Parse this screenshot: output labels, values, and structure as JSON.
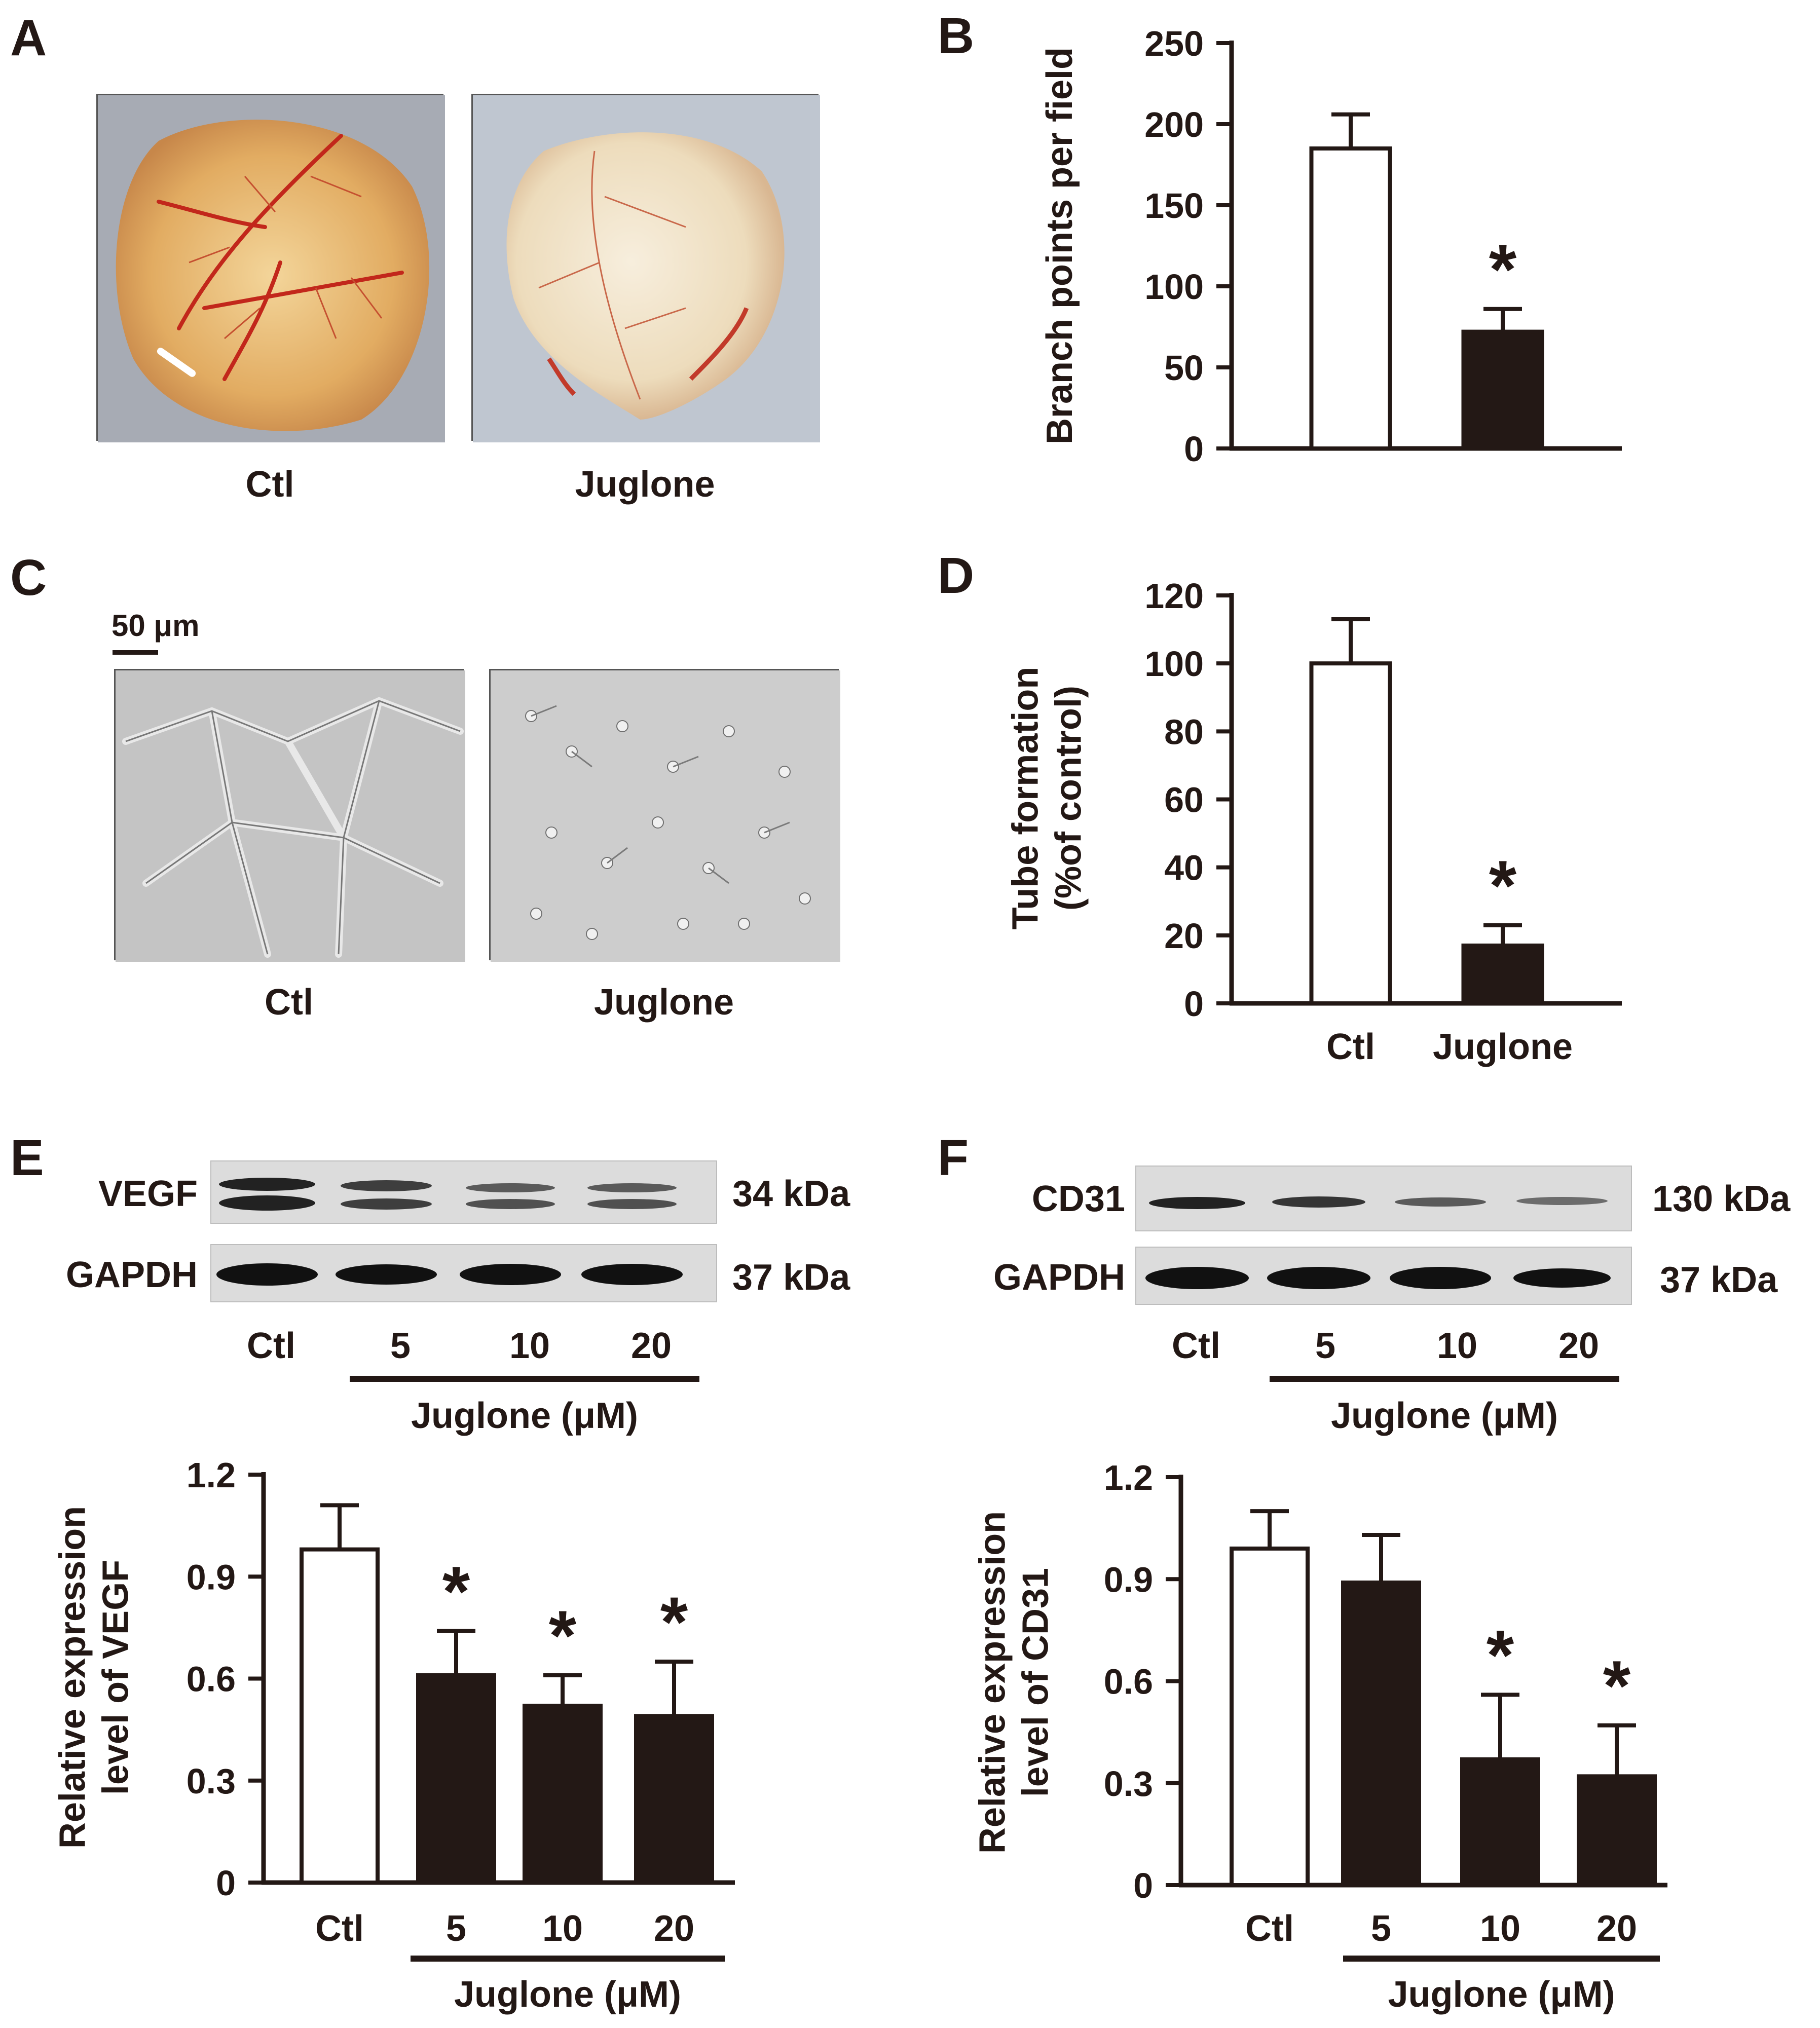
{
  "colors": {
    "ink": "#231815",
    "bar_open": "#ffffff",
    "bar_filled": "#231815"
  },
  "panel_a": {
    "letter": "A",
    "images": [
      {
        "caption": "Ctl",
        "desc_icon": "cam-photo"
      },
      {
        "caption": "Juglone",
        "desc_icon": "cam-photo"
      }
    ]
  },
  "panel_c": {
    "letter": "C",
    "scale_bar": "50 μm",
    "images": [
      {
        "caption": "Ctl",
        "desc_icon": "tube-micrograph"
      },
      {
        "caption": "Juglone",
        "desc_icon": "tube-micrograph"
      }
    ]
  },
  "panel_e": {
    "letter": "E",
    "blots": [
      {
        "protein": "VEGF",
        "size": "34 kDa"
      },
      {
        "protein": "GAPDH",
        "size": "37 kDa"
      }
    ],
    "lanes": [
      "Ctl",
      "5",
      "10",
      "20"
    ],
    "treatment_label": "Juglone (μM)"
  },
  "panel_f": {
    "letter": "F",
    "blots": [
      {
        "protein": "CD31",
        "size": "130 kDa"
      },
      {
        "protein": "GAPDH",
        "size": "37 kDa"
      }
    ],
    "lanes": [
      "Ctl",
      "5",
      "10",
      "20"
    ],
    "treatment_label": "Juglone (μM)"
  },
  "chart_data": [
    {
      "id": "B",
      "letter": "B",
      "type": "bar",
      "categories": [
        "Ctl",
        "Juglone"
      ],
      "show_category_labels": false,
      "values": [
        185,
        72
      ],
      "errors": [
        21,
        14
      ],
      "significant": [
        false,
        true
      ],
      "fill": [
        "open",
        "filled"
      ],
      "ylabel": "Branch points per field",
      "ylabel_lines": [
        "Branch points per field"
      ],
      "ylim": [
        0,
        250
      ],
      "yticks": [
        "0",
        "50",
        "100",
        "150",
        "200",
        "250"
      ],
      "ytick_values": [
        0,
        50,
        100,
        150,
        200,
        250
      ],
      "grid": false
    },
    {
      "id": "D",
      "letter": "D",
      "type": "bar",
      "categories": [
        "Ctl",
        "Juglone"
      ],
      "show_category_labels": true,
      "values": [
        100,
        17
      ],
      "errors": [
        13,
        6
      ],
      "significant": [
        false,
        true
      ],
      "fill": [
        "open",
        "filled"
      ],
      "ylabel": "Tube formation (%of control)",
      "ylabel_lines": [
        "Tube formation",
        "(%of control)"
      ],
      "ylim": [
        0,
        120
      ],
      "yticks": [
        "0",
        "20",
        "40",
        "60",
        "80",
        "100",
        "120"
      ],
      "ytick_values": [
        0,
        20,
        40,
        60,
        80,
        100,
        120
      ],
      "grid": false
    },
    {
      "id": "E",
      "type": "bar",
      "categories": [
        "Ctl",
        "5",
        "10",
        "20"
      ],
      "show_category_labels": true,
      "values": [
        0.98,
        0.61,
        0.52,
        0.49
      ],
      "errors": [
        0.13,
        0.13,
        0.09,
        0.16
      ],
      "significant": [
        false,
        true,
        true,
        true
      ],
      "fill": [
        "open",
        "filled",
        "filled",
        "filled"
      ],
      "ylabel": "Relative expression level of VEGF",
      "ylabel_lines": [
        "Relative expression",
        "level of VEGF"
      ],
      "xgroup_label": "Juglone (μM)",
      "ylim": [
        0,
        1.2
      ],
      "yticks": [
        "0",
        "0.3",
        "0.6",
        "0.9",
        "1.2"
      ],
      "ytick_values": [
        0,
        0.3,
        0.6,
        0.9,
        1.2
      ],
      "grid": false
    },
    {
      "id": "F",
      "type": "bar",
      "categories": [
        "Ctl",
        "5",
        "10",
        "20"
      ],
      "show_category_labels": true,
      "values": [
        0.99,
        0.89,
        0.37,
        0.32
      ],
      "errors": [
        0.11,
        0.14,
        0.19,
        0.15
      ],
      "significant": [
        false,
        false,
        true,
        true
      ],
      "fill": [
        "open",
        "filled",
        "filled",
        "filled"
      ],
      "ylabel": "Relative expression level of CD31",
      "ylabel_lines": [
        "Relative expression",
        "level of CD31"
      ],
      "xgroup_label": "Juglone (μM)",
      "ylim": [
        0,
        1.2
      ],
      "yticks": [
        "0",
        "0.3",
        "0.6",
        "0.9",
        "1.2"
      ],
      "ytick_values": [
        0,
        0.3,
        0.6,
        0.9,
        1.2
      ],
      "grid": false
    }
  ]
}
